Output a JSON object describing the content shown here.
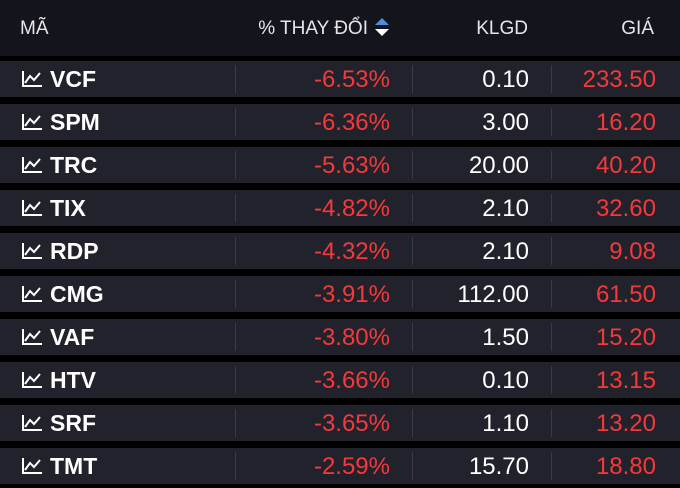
{
  "header": {
    "col_symbol": "MÃ",
    "col_change": "% THAY ĐỔI",
    "col_volume": "KLGD",
    "col_price": "GIÁ"
  },
  "colors": {
    "down": "#f5393a",
    "sort_up": "#4a8fe0",
    "sort_down": "#ffffff"
  },
  "rows": [
    {
      "symbol": "VCF",
      "change": "-6.53%",
      "volume": "0.10",
      "price": "233.50"
    },
    {
      "symbol": "SPM",
      "change": "-6.36%",
      "volume": "3.00",
      "price": "16.20"
    },
    {
      "symbol": "TRC",
      "change": "-5.63%",
      "volume": "20.00",
      "price": "40.20"
    },
    {
      "symbol": "TIX",
      "change": "-4.82%",
      "volume": "2.10",
      "price": "32.60"
    },
    {
      "symbol": "RDP",
      "change": "-4.32%",
      "volume": "2.10",
      "price": "9.08"
    },
    {
      "symbol": "CMG",
      "change": "-3.91%",
      "volume": "112.00",
      "price": "61.50"
    },
    {
      "symbol": "VAF",
      "change": "-3.80%",
      "volume": "1.50",
      "price": "15.20"
    },
    {
      "symbol": "HTV",
      "change": "-3.66%",
      "volume": "0.10",
      "price": "13.15"
    },
    {
      "symbol": "SRF",
      "change": "-3.65%",
      "volume": "1.10",
      "price": "13.20"
    },
    {
      "symbol": "TMT",
      "change": "-2.59%",
      "volume": "15.70",
      "price": "18.80"
    }
  ]
}
